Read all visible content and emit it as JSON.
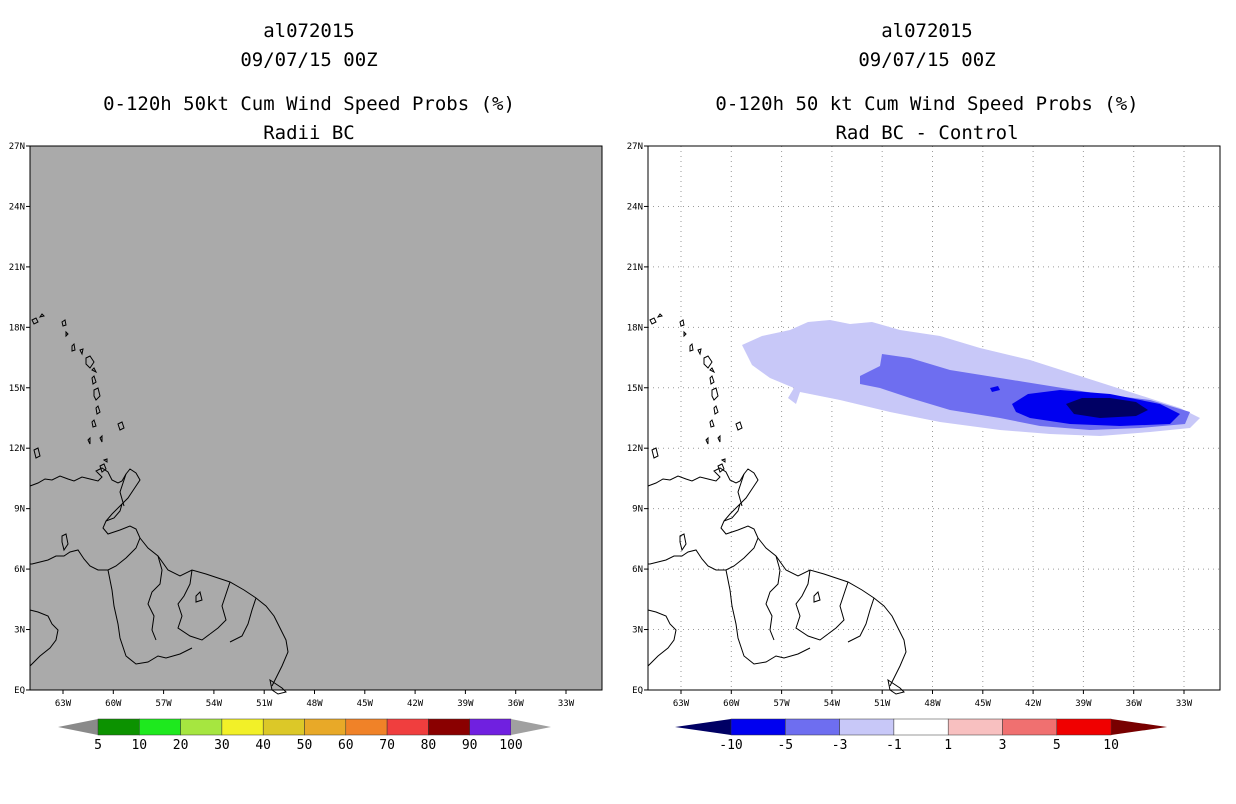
{
  "panels": [
    {
      "storm_id": "al072015",
      "datetime": "09/07/15 00Z",
      "title": "0-120h 50kt Cum Wind Speed Probs (%)",
      "subtitle": "Radii BC",
      "field_color": "#aaaaaa",
      "lat_labels": [
        "27N",
        "24N",
        "21N",
        "18N",
        "15N",
        "12N",
        "9N",
        "6N",
        "3N",
        "EQ"
      ],
      "lon_labels": [
        "63W",
        "60W",
        "57W",
        "54W",
        "51W",
        "48W",
        "45W",
        "42W",
        "39W",
        "36W",
        "33W"
      ],
      "colorbar": {
        "levels": [
          "5",
          "10",
          "20",
          "30",
          "40",
          "50",
          "60",
          "70",
          "80",
          "90",
          "100"
        ],
        "colors": [
          "#8a8a8a",
          "#0c9200",
          "#1ee91e",
          "#a6e640",
          "#f2f028",
          "#dcc828",
          "#e8a928",
          "#f08228",
          "#f03e3e",
          "#8a0000",
          "#7020e0",
          "#a0a0a0"
        ]
      }
    },
    {
      "storm_id": "al072015",
      "datetime": "09/07/15 00Z",
      "title": "0-120h 50 kt Cum Wind Speed Probs (%)",
      "subtitle": "Rad BC - Control",
      "lat_labels": [
        "27N",
        "24N",
        "21N",
        "18N",
        "15N",
        "12N",
        "9N",
        "6N",
        "3N",
        "EQ"
      ],
      "lon_labels": [
        "63W",
        "60W",
        "57W",
        "54W",
        "51W",
        "48W",
        "45W",
        "42W",
        "39W",
        "36W",
        "33W"
      ],
      "colorbar": {
        "levels": [
          "-10",
          "-5",
          "-3",
          "-1",
          "1",
          "3",
          "5",
          "10"
        ],
        "colors": [
          "#000064",
          "#0000f0",
          "#6e6ef0",
          "#c8c8f8",
          "#ffffff",
          "#f8c0c0",
          "#f07070",
          "#f00000",
          "#780000"
        ]
      }
    }
  ]
}
